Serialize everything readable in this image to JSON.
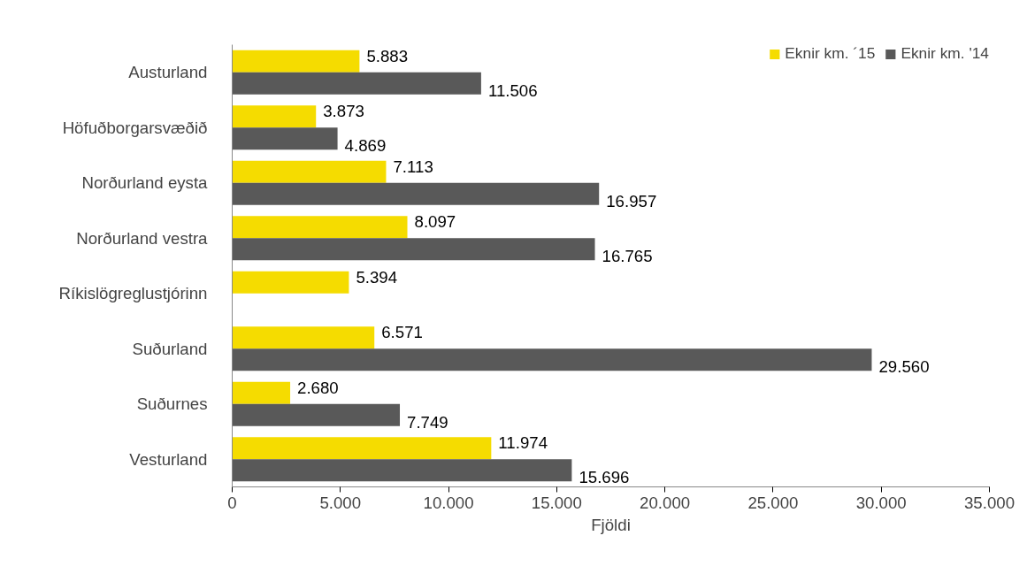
{
  "chart_data": {
    "type": "bar",
    "orientation": "horizontal",
    "xlabel": "Fjöldi",
    "categories": [
      "Austurland",
      "Höfuðborgarsvæðið",
      "Norðurland eysta",
      "Norðurland vestra",
      "Ríkislögreglustjórinn",
      "Suðurland",
      "Suðurnes",
      "Vesturland"
    ],
    "series": [
      {
        "name": "Eknir km. ´15",
        "color": "#f5dc00",
        "values": [
          5883,
          3873,
          7113,
          8097,
          5394,
          6571,
          2680,
          11974
        ],
        "value_labels": [
          "5.883",
          "3.873",
          "7.113",
          "8.097",
          "5.394",
          "6.571",
          "2.680",
          "11.974"
        ]
      },
      {
        "name": "Eknir km. '14",
        "color": "#595959",
        "values": [
          11506,
          4869,
          16957,
          16765,
          null,
          29560,
          7749,
          15696
        ],
        "value_labels": [
          "11.506",
          "4.869",
          "16.957",
          "16.765",
          null,
          "29.560",
          "7.749",
          "15.696"
        ]
      }
    ],
    "xlim": [
      0,
      35000
    ],
    "xticks": [
      0,
      {
        "value": 5000,
        "label": "5.000"
      },
      {
        "value": 10000,
        "label": "10.000"
      },
      {
        "value": 15000,
        "label": "15.000"
      },
      {
        "value": 20000,
        "label": "20.000"
      },
      {
        "value": 25000,
        "label": "25.000"
      },
      {
        "value": 30000,
        "label": "30.000"
      },
      {
        "value": 35000,
        "label": "35.000"
      }
    ],
    "grid": false,
    "legend": "top right"
  }
}
